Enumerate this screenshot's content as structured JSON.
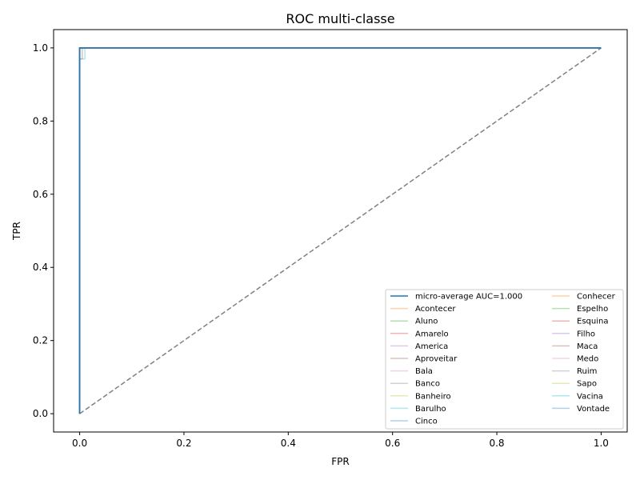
{
  "chart_data": {
    "type": "line",
    "title": "ROC multi-classe",
    "xlabel": "FPR",
    "ylabel": "TPR",
    "xlim": [
      -0.05,
      1.05
    ],
    "ylim": [
      -0.05,
      1.05
    ],
    "xticks": [
      0.0,
      0.2,
      0.4,
      0.6,
      0.8,
      1.0
    ],
    "yticks": [
      0.0,
      0.2,
      0.4,
      0.6,
      0.8,
      1.0
    ],
    "xtick_labels": [
      "0.0",
      "0.2",
      "0.4",
      "0.6",
      "0.8",
      "1.0"
    ],
    "ytick_labels": [
      "0.0",
      "0.2",
      "0.4",
      "0.6",
      "0.8",
      "1.0"
    ],
    "grid": false,
    "legend_position": "lower-right",
    "legend_columns": 2,
    "diagonal": {
      "x": [
        0,
        1
      ],
      "y": [
        0,
        1
      ],
      "color": "#808080",
      "style": "dashed"
    },
    "series": [
      {
        "name": "micro-average AUC=1.000",
        "color": "#1f77b4",
        "opacity": 1.0,
        "x": [
          0,
          0,
          0.01,
          1
        ],
        "y": [
          0,
          1,
          1,
          1
        ]
      },
      {
        "name": "Acontecer",
        "color": "#ff7f0e",
        "opacity": 0.35,
        "x": [
          0,
          0,
          1
        ],
        "y": [
          0,
          1,
          1
        ]
      },
      {
        "name": "Aluno",
        "color": "#2ca02c",
        "opacity": 0.35,
        "x": [
          0,
          0,
          1
        ],
        "y": [
          0,
          1,
          1
        ]
      },
      {
        "name": "Amarelo",
        "color": "#d62728",
        "opacity": 0.35,
        "x": [
          0,
          0,
          1
        ],
        "y": [
          0,
          1,
          1
        ]
      },
      {
        "name": "America",
        "color": "#9467bd",
        "opacity": 0.35,
        "x": [
          0,
          0,
          1
        ],
        "y": [
          0,
          1,
          1
        ]
      },
      {
        "name": "Aproveitar",
        "color": "#8c564b",
        "opacity": 0.35,
        "x": [
          0,
          0,
          0.005,
          0.005,
          1
        ],
        "y": [
          0,
          0.97,
          0.97,
          1,
          1
        ]
      },
      {
        "name": "Bala",
        "color": "#e377c2",
        "opacity": 0.35,
        "x": [
          0,
          0,
          1
        ],
        "y": [
          0,
          1,
          1
        ]
      },
      {
        "name": "Banco",
        "color": "#7f7f7f",
        "opacity": 0.35,
        "x": [
          0,
          0,
          1
        ],
        "y": [
          0,
          1,
          1
        ]
      },
      {
        "name": "Banheiro",
        "color": "#bcbd22",
        "opacity": 0.35,
        "x": [
          0,
          0,
          1
        ],
        "y": [
          0,
          1,
          1
        ]
      },
      {
        "name": "Barulho",
        "color": "#17becf",
        "opacity": 0.35,
        "x": [
          0,
          0,
          0.01,
          0.01,
          1
        ],
        "y": [
          0,
          0.97,
          0.97,
          1,
          1
        ]
      },
      {
        "name": "Cinco",
        "color": "#1f77b4",
        "opacity": 0.35,
        "x": [
          0,
          0,
          1
        ],
        "y": [
          0,
          1,
          1
        ]
      },
      {
        "name": "Conhecer",
        "color": "#ff7f0e",
        "opacity": 0.35,
        "x": [
          0,
          0,
          1
        ],
        "y": [
          0,
          1,
          1
        ]
      },
      {
        "name": "Espelho",
        "color": "#2ca02c",
        "opacity": 0.35,
        "x": [
          0,
          0,
          1
        ],
        "y": [
          0,
          1,
          1
        ]
      },
      {
        "name": "Esquina",
        "color": "#d62728",
        "opacity": 0.35,
        "x": [
          0,
          0,
          1
        ],
        "y": [
          0,
          1,
          1
        ]
      },
      {
        "name": "Filho",
        "color": "#9467bd",
        "opacity": 0.35,
        "x": [
          0,
          0,
          1
        ],
        "y": [
          0,
          1,
          1
        ]
      },
      {
        "name": "Maca",
        "color": "#8c564b",
        "opacity": 0.35,
        "x": [
          0,
          0,
          1
        ],
        "y": [
          0,
          1,
          1
        ]
      },
      {
        "name": "Medo",
        "color": "#e377c2",
        "opacity": 0.35,
        "x": [
          0,
          0,
          1
        ],
        "y": [
          0,
          1,
          1
        ]
      },
      {
        "name": "Ruim",
        "color": "#7f7f7f",
        "opacity": 0.35,
        "x": [
          0,
          0,
          1
        ],
        "y": [
          0,
          1,
          1
        ]
      },
      {
        "name": "Sapo",
        "color": "#bcbd22",
        "opacity": 0.35,
        "x": [
          0,
          0,
          1
        ],
        "y": [
          0,
          1,
          1
        ]
      },
      {
        "name": "Vacina",
        "color": "#17becf",
        "opacity": 0.35,
        "x": [
          0,
          0,
          1
        ],
        "y": [
          0,
          1,
          1
        ]
      },
      {
        "name": "Vontade",
        "color": "#1f77b4",
        "opacity": 0.35,
        "x": [
          0,
          0,
          1
        ],
        "y": [
          0,
          1,
          1
        ]
      }
    ]
  }
}
